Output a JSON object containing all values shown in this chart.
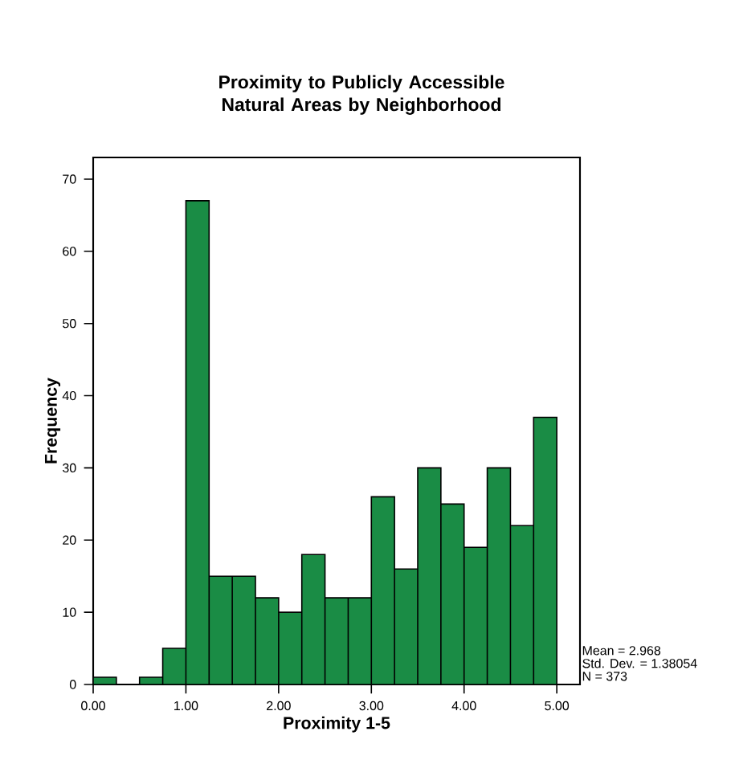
{
  "chart_data": {
    "type": "histogram",
    "title": "Proximity to Publicly Accessible Natural Areas by Neighborhood",
    "xlabel": "Proximity 1-5",
    "ylabel": "Frequency",
    "bins": [
      0,
      0.25,
      0.5,
      0.75,
      1,
      1.25,
      1.5,
      1.75,
      2,
      2.25,
      2.5,
      2.75,
      3,
      3.25,
      3.5,
      3.75,
      4,
      4.25,
      4.5,
      4.75,
      5
    ],
    "values": [
      1,
      0,
      1,
      5,
      67,
      15,
      15,
      12,
      10,
      18,
      12,
      12,
      26,
      16,
      30,
      25,
      19,
      30,
      22,
      37
    ],
    "color": "#1a8c45",
    "xlim": [
      0,
      5.25
    ],
    "ylim": [
      0,
      73
    ],
    "xticks": [
      {
        "value": 0,
        "label": "0.00"
      },
      {
        "value": 1,
        "label": "1.00"
      },
      {
        "value": 2,
        "label": "2.00"
      },
      {
        "value": 3,
        "label": "3.00"
      },
      {
        "value": 4,
        "label": "4.00"
      },
      {
        "value": 5,
        "label": "5.00"
      }
    ],
    "yticks": [
      0,
      10,
      20,
      30,
      40,
      50,
      60,
      70
    ],
    "grid": false,
    "annotations": [
      "Mean = 2.968",
      "Std. Dev. = 1.38054",
      "N = 373"
    ]
  }
}
